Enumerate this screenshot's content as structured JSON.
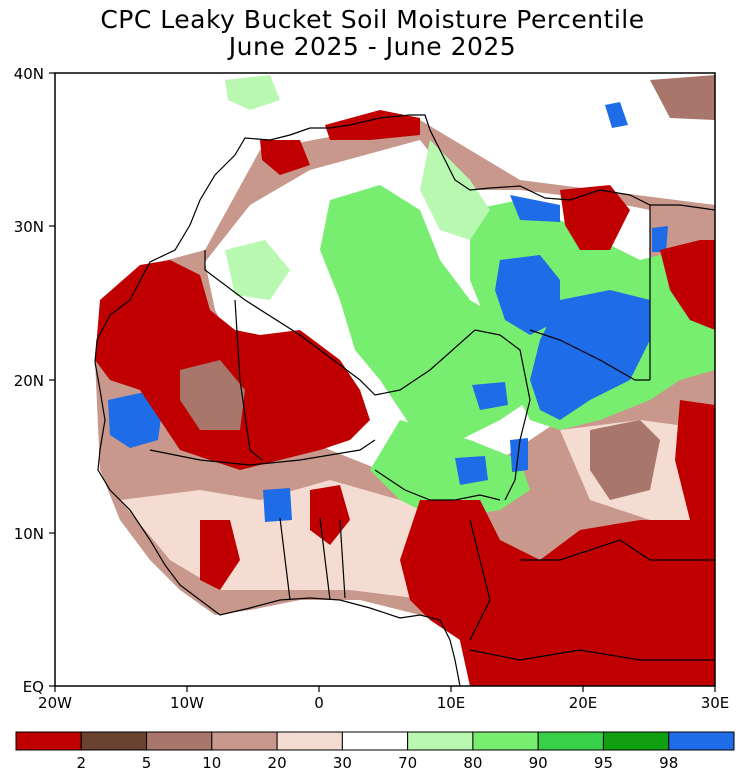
{
  "title": {
    "line1": "CPC Leaky Bucket Soil Moisture Percentile",
    "line2": "June 2025 - June 2025"
  },
  "axes": {
    "lat_labels": [
      "40N",
      "30N",
      "20N",
      "10N",
      "EQ"
    ],
    "lon_labels": [
      "20W",
      "10W",
      "0",
      "10E",
      "20E",
      "30E"
    ]
  },
  "legend": {
    "colors": [
      "#c00000",
      "#6a4230",
      "#a8766a",
      "#c8988c",
      "#f4dcd2",
      "#ffffff",
      "#b8f8b0",
      "#78ee70",
      "#38d048",
      "#10a010",
      "#1e6ce8"
    ],
    "labels": [
      "2",
      "5",
      "10",
      "20",
      "30",
      "70",
      "80",
      "90",
      "95",
      "98"
    ]
  },
  "map_colors": {
    "white": "#ffffff",
    "pale_green": "#b8f8b0",
    "green": "#78ee70",
    "mid_green": "#38d048",
    "blue": "#1e6ce8",
    "red": "#c00000",
    "brown": "#a8766a",
    "tan": "#c8988c",
    "pink": "#f4dcd2"
  }
}
